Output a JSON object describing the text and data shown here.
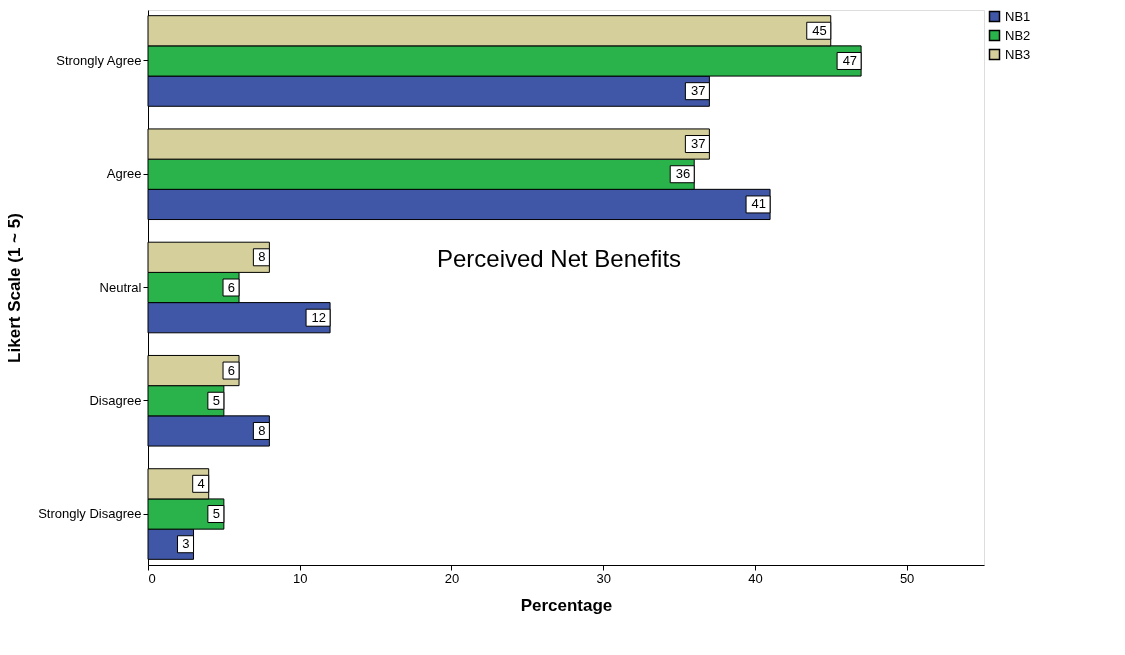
{
  "chart_data": {
    "type": "bar",
    "orientation": "horizontal",
    "title": "Perceived Net Benefits",
    "xlabel": "Percentage",
    "ylabel": "Likert Scale (1 ~ 5)",
    "categories": [
      "Strongly Agree",
      "Agree",
      "Neutral",
      "Disagree",
      "Strongly Disagree"
    ],
    "series": [
      {
        "name": "NB1",
        "color": "#3f57a6",
        "values": [
          37,
          41,
          12,
          8,
          3
        ]
      },
      {
        "name": "NB2",
        "color": "#2ab34a",
        "values": [
          47,
          36,
          6,
          5,
          5
        ]
      },
      {
        "name": "NB3",
        "color": "#d4cf9b",
        "values": [
          45,
          37,
          8,
          6,
          4
        ]
      }
    ],
    "xlim": [
      0,
      55.1
    ],
    "xticks": [
      0,
      10,
      20,
      30,
      40,
      50
    ],
    "data_labels": true,
    "legend": "top right",
    "grid": false
  }
}
